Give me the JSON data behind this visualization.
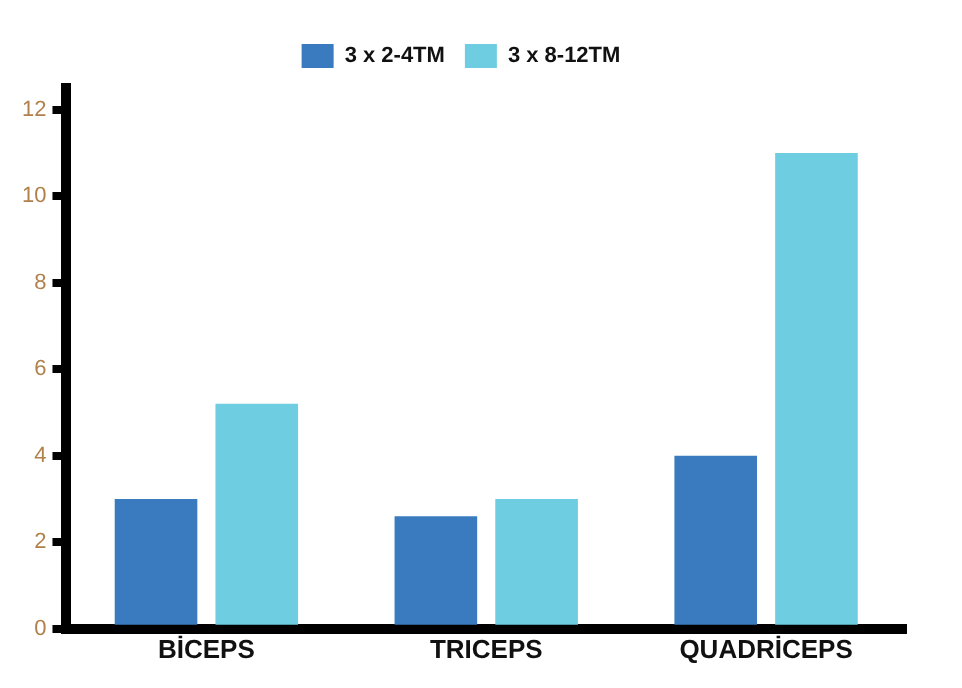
{
  "chart_data": {
    "type": "bar",
    "categories": [
      "BİCEPS",
      "TRICEPS",
      "QUADRİCEPS"
    ],
    "series": [
      {
        "name": "3 x 2-4TM",
        "color": "#3a7bbf",
        "values": [
          3,
          2.6,
          4
        ]
      },
      {
        "name": "3 x 8-12TM",
        "color": "#6ecde0",
        "values": [
          5.2,
          3,
          11
        ]
      }
    ],
    "ylim": [
      0,
      12.5
    ],
    "yticks": [
      0,
      2,
      4,
      6,
      8,
      10,
      12
    ],
    "grid": false,
    "legend": "top"
  }
}
